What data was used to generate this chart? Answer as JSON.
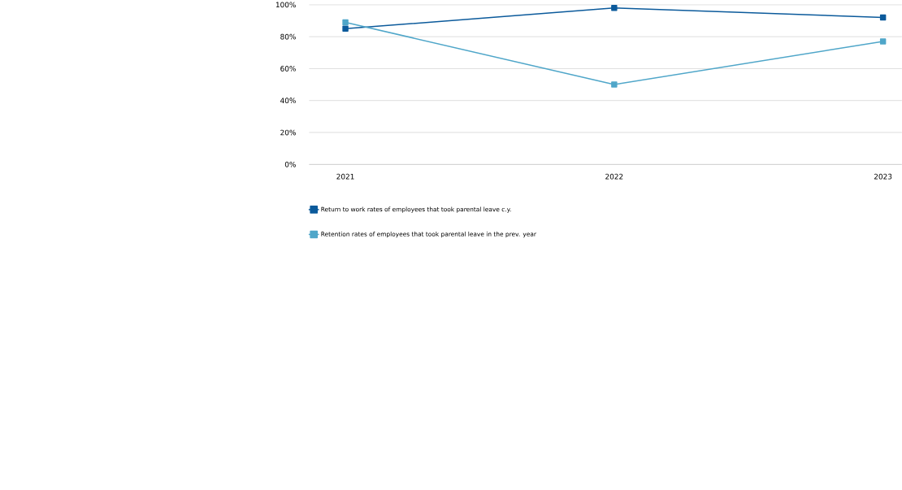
{
  "chart_data": {
    "type": "line",
    "categories": [
      "2021",
      "2022",
      "2023"
    ],
    "series": [
      {
        "name": "Return to work rates of employees that took parental leave c.y.",
        "color": "#0b5a9b",
        "values": [
          85,
          98,
          92
        ]
      },
      {
        "name": "Retention rates of employees that took parental leave in the prev. year",
        "color": "#4fa6c9",
        "values": [
          89,
          50,
          77
        ]
      }
    ],
    "ylim": [
      0,
      100
    ],
    "yticks": [
      {
        "value": 0,
        "label": "0%"
      },
      {
        "value": 20,
        "label": "20%"
      },
      {
        "value": 40,
        "label": "40%"
      },
      {
        "value": 60,
        "label": "60%"
      },
      {
        "value": 80,
        "label": "80%"
      },
      {
        "value": 100,
        "label": "100%"
      }
    ],
    "grid": "y",
    "legend": "bottom",
    "marker": "square",
    "line_style": "solid"
  }
}
